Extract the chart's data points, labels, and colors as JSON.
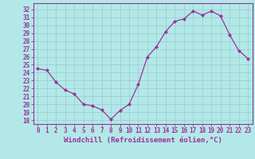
{
  "hours": [
    0,
    1,
    2,
    3,
    4,
    5,
    6,
    7,
    8,
    9,
    10,
    11,
    12,
    13,
    14,
    15,
    16,
    17,
    18,
    19,
    20,
    21,
    22,
    23
  ],
  "values": [
    24.5,
    24.3,
    22.8,
    21.8,
    21.3,
    20.0,
    19.8,
    19.3,
    18.1,
    19.2,
    20.0,
    22.5,
    26.0,
    27.3,
    29.2,
    30.5,
    30.8,
    31.8,
    31.3,
    31.8,
    31.2,
    28.8,
    26.8,
    25.8
  ],
  "line_color": "#993399",
  "marker": "D",
  "marker_size": 2.0,
  "bg_color": "#b3e8e8",
  "grid_color": "#99cccc",
  "xlabel": "Windchill (Refroidissement éolien,°C)",
  "ylabel_ticks": [
    18,
    19,
    20,
    21,
    22,
    23,
    24,
    25,
    26,
    27,
    28,
    29,
    30,
    31,
    32
  ],
  "ylim": [
    17.5,
    32.8
  ],
  "xlim": [
    -0.5,
    23.5
  ],
  "xlabel_fontsize": 6.5,
  "tick_fontsize": 5.5,
  "axis_label_color": "#993399",
  "tick_color": "#993399",
  "spine_color": "#993399"
}
